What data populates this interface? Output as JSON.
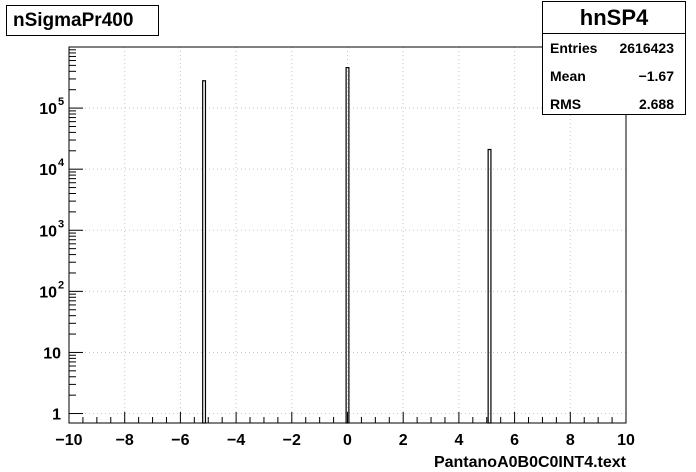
{
  "histogram": {
    "title": "nSigmaPr400",
    "stats": {
      "name": "hnSP4",
      "rows": [
        {
          "label": "Entries",
          "value": "2616423"
        },
        {
          "label": "Mean",
          "value": "−1.67"
        },
        {
          "label": "RMS",
          "value": "2.688"
        }
      ]
    }
  },
  "chart_data": {
    "type": "bar",
    "title": "nSigmaPr400",
    "xlabel": "PantanoA0B0C0INT4.text",
    "ylabel": "",
    "xlim": [
      -10,
      10
    ],
    "ylim_log": [
      0.7,
      1000000
    ],
    "y_scale": "log",
    "grid": true,
    "legend": "top-right stats box",
    "x_tick_labels": [
      "−10",
      "−8",
      "−6",
      "−4",
      "−2",
      "0",
      "2",
      "4",
      "6",
      "8",
      "10"
    ],
    "x_ticks": [
      -10,
      -8,
      -6,
      -4,
      -2,
      0,
      2,
      4,
      6,
      8,
      10
    ],
    "y_ticks": [
      {
        "value": 1,
        "label": "1",
        "exp": ""
      },
      {
        "value": 10,
        "label": "10",
        "exp": ""
      },
      {
        "value": 100,
        "label": "10",
        "exp": "2"
      },
      {
        "value": 1000,
        "label": "10",
        "exp": "3"
      },
      {
        "value": 10000,
        "label": "10",
        "exp": "4"
      },
      {
        "value": 100000,
        "label": "10",
        "exp": "5"
      }
    ],
    "bins": [
      {
        "x0": -5.2,
        "x1": -5.1,
        "value": 280000
      },
      {
        "x0": -0.05,
        "x1": 0.05,
        "value": 460000
      },
      {
        "x0": 5.05,
        "x1": 5.15,
        "value": 21000
      }
    ],
    "bar_color": "#000000"
  }
}
